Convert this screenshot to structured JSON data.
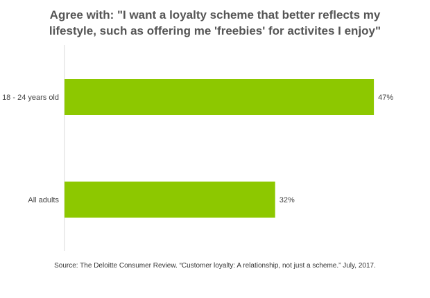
{
  "chart_title_lines": [
    "Agree with: \"I want a loyalty scheme that better reflects my",
    "lifestyle, such as offering me 'freebies' for activites I enjoy\""
  ],
  "source": "Source: The Deloitte Consumer Review. “Customer loyalty: A relationship, not just a scheme.” July, 2017.",
  "chart_data": {
    "type": "bar",
    "orientation": "horizontal",
    "title": "Agree with: \"I want a loyalty scheme that better reflects my lifestyle, such as offering me 'freebies' for activites I enjoy\"",
    "categories": [
      "18 - 24 years old",
      "All adults"
    ],
    "values": [
      47,
      32
    ],
    "value_labels": [
      "47%",
      "32%"
    ],
    "unit": "%",
    "xlim": [
      0,
      50
    ],
    "bar_color": "#8dc800",
    "grid": false,
    "legend": "none",
    "xlabel": "",
    "ylabel": ""
  }
}
